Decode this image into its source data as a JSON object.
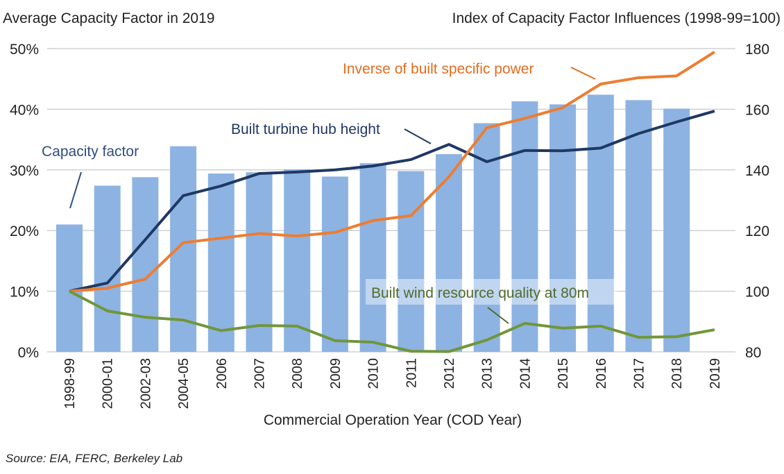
{
  "chart_data": {
    "type": "bar+line",
    "left_axis_title": "Average Capacity Factor in 2019",
    "right_axis_title": "Index of Capacity Factor Influences (1998-99=100)",
    "xlabel": "Commercial Operation Year (COD Year)",
    "source": "Source: EIA, FERC, Berkeley Lab",
    "categories": [
      "1998-99",
      "2000-01",
      "2002-03",
      "2004-05",
      "2006",
      "2007",
      "2008",
      "2009",
      "2010",
      "2011",
      "2012",
      "2013",
      "2014",
      "2015",
      "2016",
      "2017",
      "2018",
      "2019"
    ],
    "left_axis": {
      "range": [
        0,
        50
      ],
      "ticks": [
        "0%",
        "10%",
        "20%",
        "30%",
        "40%",
        "50%"
      ],
      "unit": "%"
    },
    "right_axis": {
      "range": [
        80,
        180
      ],
      "ticks": [
        "80",
        "100",
        "120",
        "140",
        "160",
        "180"
      ]
    },
    "grid": true,
    "bars": {
      "name": "Capacity factor",
      "axis": "left",
      "color": "#8DB3E2",
      "values": [
        21.0,
        27.4,
        28.8,
        33.9,
        29.4,
        29.6,
        30.1,
        28.9,
        31.1,
        29.8,
        32.6,
        37.7,
        41.3,
        40.8,
        42.4,
        41.5,
        40.1,
        null
      ]
    },
    "series": [
      {
        "name": "Built turbine hub height",
        "axis": "right",
        "color": "#1F3864",
        "values": [
          100,
          102.7,
          117,
          131.5,
          134.7,
          138.8,
          139.3,
          140,
          141.3,
          143.4,
          148.4,
          142.7,
          146.4,
          146.3,
          147.2,
          152,
          155.8,
          159.4
        ]
      },
      {
        "name": "Inverse of built specific power",
        "axis": "right",
        "color": "#ED7D31",
        "values": [
          100,
          101,
          104,
          116,
          117.5,
          119,
          118.2,
          119.4,
          123.3,
          124.9,
          137.7,
          153.9,
          157,
          160.5,
          168.3,
          170.4,
          171,
          178.9
        ]
      },
      {
        "name": "Built wind resource quality at 80m",
        "axis": "right",
        "color": "#70963A",
        "values": [
          100,
          93.5,
          91.4,
          90.5,
          87,
          88.7,
          88.5,
          83.7,
          83.2,
          80.2,
          80.1,
          83.9,
          89.4,
          87.8,
          88.5,
          84.8,
          85,
          87.3
        ]
      }
    ]
  }
}
